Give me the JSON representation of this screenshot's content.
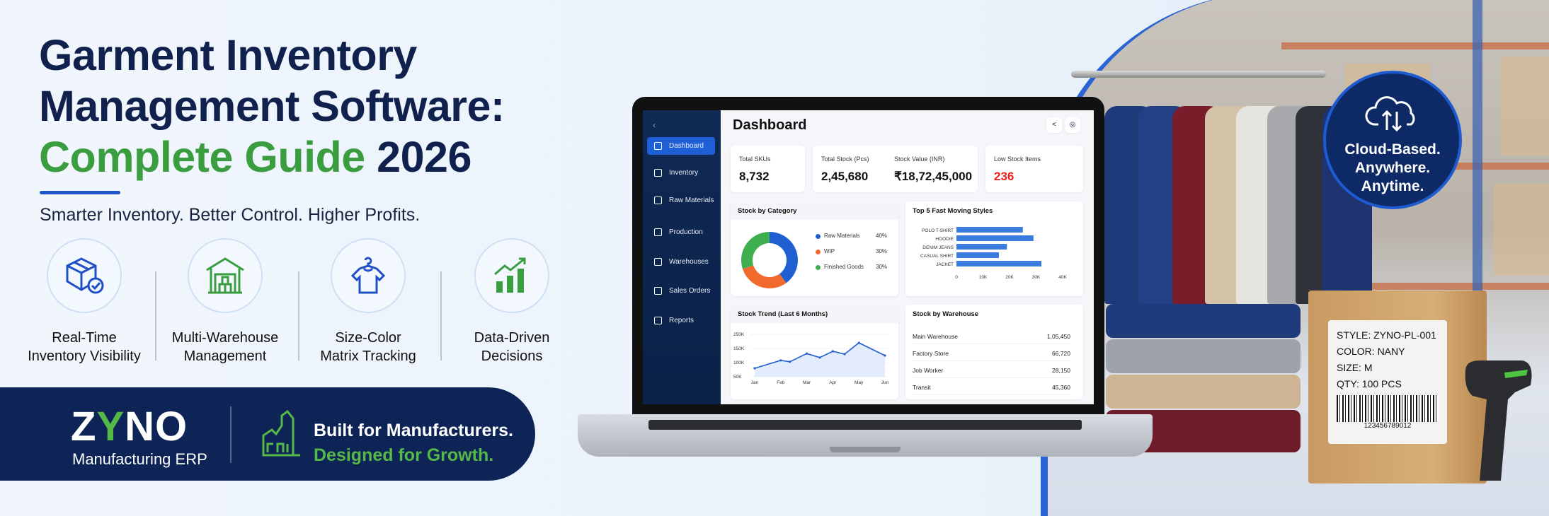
{
  "hero": {
    "title_line1": "Garment Inventory",
    "title_line2": "Management Software:",
    "title_line3_green": "Complete Guide",
    "title_line3_blue": "2026",
    "subtitle": "Smarter Inventory. Better Control. Higher Profits."
  },
  "features": [
    {
      "icon": "box-check-icon",
      "line1": "Real-Time",
      "line2": "Inventory Visibility"
    },
    {
      "icon": "warehouse-icon",
      "line1": "Multi-Warehouse",
      "line2": "Management"
    },
    {
      "icon": "tshirt-hanger-icon",
      "line1": "Size-Color",
      "line2": "Matrix Tracking"
    },
    {
      "icon": "growth-chart-icon",
      "line1": "Data-Driven",
      "line2": "Decisions"
    }
  ],
  "brand": {
    "logo_text": "ZYNO",
    "product": "Manufacturing ERP",
    "tagline1": "Built for Manufacturers.",
    "tagline2": "Designed for Growth.",
    "colors": {
      "navy": "#0e2457",
      "green": "#55b947",
      "blue": "#1f57c8"
    }
  },
  "cloud_badge": {
    "line1": "Cloud-Based.",
    "line2": "Anywhere.",
    "line3": "Anytime.",
    "icon": "cloud-sync-icon"
  },
  "box_label": {
    "style": "STYLE: ZYNO-PL-001",
    "color": "COLOR: NANY",
    "size": "SIZE:  M",
    "qty": "QTY:  100 PCS",
    "barcode_number": "123456789012"
  },
  "dashboard": {
    "title": "Dashboard",
    "sidebar": [
      {
        "label": "Dashboard",
        "active": true
      },
      {
        "label": "Inventory"
      },
      {
        "label": "Raw Materials"
      },
      {
        "label": "Production"
      },
      {
        "label": "Warehouses"
      },
      {
        "label": "Sales Orders"
      },
      {
        "label": "Reports"
      }
    ],
    "kpis": [
      {
        "label": "Total SKUs",
        "value": "8,732"
      },
      {
        "label": "Total Stock (Pcs)",
        "value": "2,45,680"
      },
      {
        "label": "Stock Value (INR)",
        "value": "₹18,72,45,000"
      },
      {
        "label": "Low Stock Items",
        "value": "236",
        "color": "#e8231f"
      }
    ],
    "warehouse_title": "Stock by Warehouse",
    "warehouses": [
      {
        "name": "Main Warehouse",
        "value": "1,05,450"
      },
      {
        "name": "Factory Store",
        "value": "66,720"
      },
      {
        "name": "Job Worker",
        "value": "28,150"
      },
      {
        "name": "Transit",
        "value": "45,360"
      }
    ]
  },
  "chart_data": [
    {
      "type": "pie",
      "title": "Stock by Category",
      "categories": [
        "Raw Materials",
        "WIP",
        "Finished Goods"
      ],
      "values": [
        40,
        30,
        30
      ],
      "labels": [
        "40%",
        "30%",
        "30%"
      ],
      "colors": [
        "#1f5fd1",
        "#f2692e",
        "#3fae4f"
      ],
      "legend": "right"
    },
    {
      "type": "bar",
      "title": "Top 5 Fast Moving Styles",
      "orientation": "horizontal",
      "categories": [
        "POLO T-SHIRT",
        "HOODIE",
        "DENIM JEANS",
        "CASUAL SHIRT",
        "JACKET"
      ],
      "values": [
        25000,
        29000,
        19000,
        16000,
        32000
      ],
      "xlim": [
        0,
        40000
      ],
      "xticks": [
        "0",
        "10K",
        "20K",
        "30K",
        "40K"
      ],
      "color": "#3a7be0"
    },
    {
      "type": "area",
      "title": "Stock Trend (Last 6 Months)",
      "xticks": [
        "Jan",
        "Feb",
        "Mar",
        "Apr",
        "May",
        "Jun"
      ],
      "yticks": [
        "250K",
        "150K",
        "100K",
        "50K"
      ],
      "points": [
        [
          1,
          80
        ],
        [
          2,
          108
        ],
        [
          2.35,
          103
        ],
        [
          3,
          132
        ],
        [
          3.5,
          118
        ],
        [
          4,
          140
        ],
        [
          4.45,
          130
        ],
        [
          5,
          170
        ],
        [
          6,
          125
        ]
      ],
      "ylim": [
        50,
        200
      ],
      "color": "#1f5fd1"
    }
  ]
}
